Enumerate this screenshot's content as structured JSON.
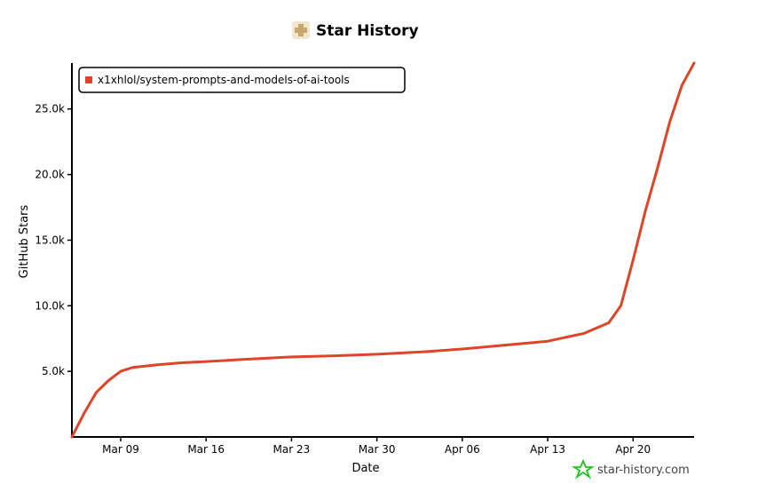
{
  "chart_data": {
    "type": "line",
    "title": "Star History",
    "xlabel": "Date",
    "ylabel": "GitHub Stars",
    "x_ticks": [
      "Mar 09",
      "Mar 16",
      "Mar 23",
      "Mar 30",
      "Apr 06",
      "Apr 13",
      "Apr 20"
    ],
    "y_ticks": [
      "5.0k",
      "10.0k",
      "15.0k",
      "20.0k",
      "25.0k"
    ],
    "y_tick_values": [
      5000,
      10000,
      15000,
      20000,
      25000
    ],
    "xlim": [
      "2025-03-05",
      "2025-04-25"
    ],
    "ylim": [
      0,
      28500
    ],
    "legend_position": "top-left",
    "colors": {
      "series": "#dd4528",
      "brand_logo": "#1ec41e"
    },
    "series": [
      {
        "name": "x1xhlol/system-prompts-and-models-of-ai-tools",
        "points": [
          [
            "2025-03-05",
            0
          ],
          [
            "2025-03-06",
            1800
          ],
          [
            "2025-03-07",
            3400
          ],
          [
            "2025-03-08",
            4300
          ],
          [
            "2025-03-09",
            5000
          ],
          [
            "2025-03-10",
            5300
          ],
          [
            "2025-03-12",
            5500
          ],
          [
            "2025-03-14",
            5650
          ],
          [
            "2025-03-16",
            5750
          ],
          [
            "2025-03-19",
            5900
          ],
          [
            "2025-03-23",
            6100
          ],
          [
            "2025-03-27",
            6200
          ],
          [
            "2025-03-30",
            6300
          ],
          [
            "2025-04-03",
            6500
          ],
          [
            "2025-04-06",
            6700
          ],
          [
            "2025-04-09",
            6950
          ],
          [
            "2025-04-13",
            7300
          ],
          [
            "2025-04-16",
            7900
          ],
          [
            "2025-04-18",
            8700
          ],
          [
            "2025-04-19",
            10000
          ],
          [
            "2025-04-20",
            13500
          ],
          [
            "2025-04-21",
            17200
          ],
          [
            "2025-04-22",
            20500
          ],
          [
            "2025-04-23",
            24000
          ],
          [
            "2025-04-24",
            26800
          ],
          [
            "2025-04-25",
            28500
          ]
        ]
      }
    ]
  },
  "branding": {
    "text": "star-history.com"
  }
}
